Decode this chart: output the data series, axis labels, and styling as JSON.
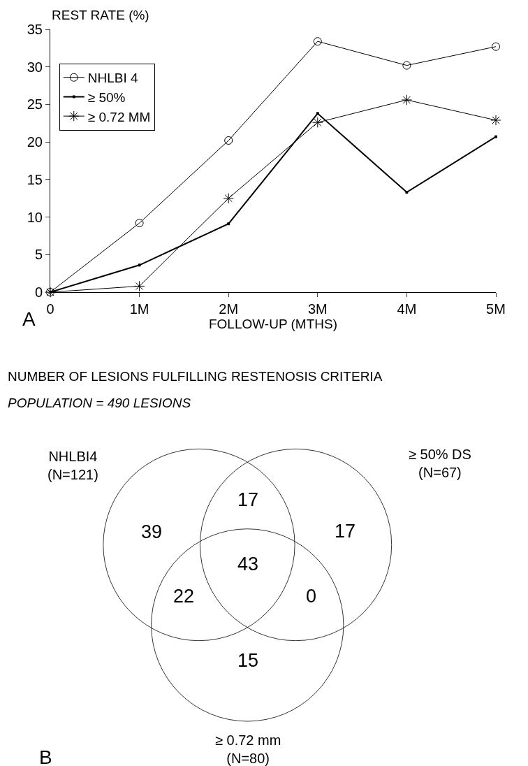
{
  "chart_data": [
    {
      "type": "line",
      "ylabel": "REST RATE (%)",
      "xlabel": "FOLLOW-UP (MTHS)",
      "annotations": [
        "A"
      ],
      "categories": [
        "0",
        "1M",
        "2M",
        "3M",
        "4M",
        "5M"
      ],
      "series": [
        {
          "name": "NHLBI 4",
          "color": "#000000",
          "marker": "circle",
          "values": [
            0,
            9.2,
            20.2,
            33.4,
            30.2,
            32.7
          ]
        },
        {
          "name": "≥ 50%",
          "color": "#000000",
          "marker": "square",
          "values": [
            0,
            3.6,
            9.1,
            23.8,
            13.3,
            20.7
          ]
        },
        {
          "name": "≥ 0.72 MM",
          "color": "#000000",
          "marker": "cross",
          "values": [
            0,
            0.8,
            12.5,
            22.6,
            25.6,
            22.9
          ]
        }
      ],
      "ylim": [
        0,
        35
      ],
      "yticks": [
        0,
        5,
        10,
        15,
        20,
        25,
        30,
        35
      ],
      "grid": false,
      "legend": "top left",
      "line_style": "solid"
    },
    {
      "type": "other",
      "title": "NUMBER OF LESIONS FULFILLING RESTENOSIS CRITERIA",
      "subtitle": "POPULATION = 490 LESIONS",
      "annotations": [
        "NHLBI4\n(N=121)",
        "≥ 50% DS\n(N=67)",
        "≥ 0.72 mm\n(N=80)",
        "39",
        "17",
        "17",
        "43",
        "22",
        "0",
        "15",
        "B"
      ]
    }
  ]
}
